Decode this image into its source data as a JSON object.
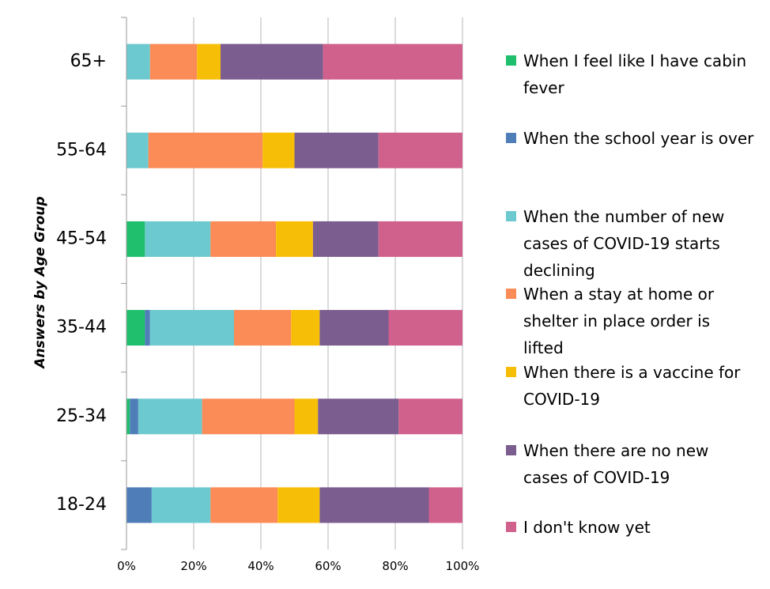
{
  "chart_data": {
    "type": "bar",
    "orientation": "horizontal",
    "stacked": "percent",
    "ylabel": "Answers by Age Group",
    "xlim": [
      0,
      100
    ],
    "xticks": [
      "0%",
      "20%",
      "40%",
      "60%",
      "80%",
      "100%"
    ],
    "grid": true,
    "legend_position": "right",
    "categories": [
      "65+",
      "55-64",
      "45-54",
      "35-44",
      "25-34",
      "18-24"
    ],
    "series": [
      {
        "name": "When I feel like I have cabin fever",
        "color": "#1fbf6e",
        "values": [
          0,
          0,
          5.5,
          5.5,
          1,
          0
        ]
      },
      {
        "name": "When the school year is over",
        "color": "#4f7db8",
        "values": [
          0,
          0,
          0,
          1.5,
          2.5,
          7.5
        ]
      },
      {
        "name": "When the number of new cases of COVID-19 starts declining",
        "color": "#6cc9cf",
        "values": [
          7,
          6.5,
          19.5,
          25,
          19,
          17.5
        ]
      },
      {
        "name": "When a stay at home or shelter in place order is lifted",
        "color": "#fb8b57",
        "values": [
          14,
          34,
          19.5,
          17,
          27.5,
          20
        ]
      },
      {
        "name": "When there is a vaccine for COVID-19",
        "color": "#f7be08",
        "values": [
          7,
          9.5,
          11,
          8.5,
          7,
          12.5
        ]
      },
      {
        "name": "When there are no new cases of COVID-19",
        "color": "#7b5d8f",
        "values": [
          30.5,
          25,
          19.5,
          20.5,
          24,
          32.5
        ]
      },
      {
        "name": "I don't know yet",
        "color": "#d0608c",
        "values": [
          41.5,
          25,
          25,
          22,
          19,
          10
        ]
      }
    ]
  },
  "legend": {
    "items": [
      {
        "line1": "When I feel like I have cabin",
        "line2": "fever",
        "line3": ""
      },
      {
        "line1": "When the school year is over",
        "line2": "",
        "line3": ""
      },
      {
        "line1": "When the number of new",
        "line2": "cases of COVID-19 starts",
        "line3": "declining"
      },
      {
        "line1": "When a stay at home or",
        "line2": "shelter in place order is",
        "line3": "lifted"
      },
      {
        "line1": "When there is a vaccine for",
        "line2": "COVID-19",
        "line3": ""
      },
      {
        "line1": "When there are no new",
        "line2": "cases of COVID-19",
        "line3": ""
      },
      {
        "line1": "I don't know yet",
        "line2": "",
        "line3": ""
      }
    ]
  }
}
